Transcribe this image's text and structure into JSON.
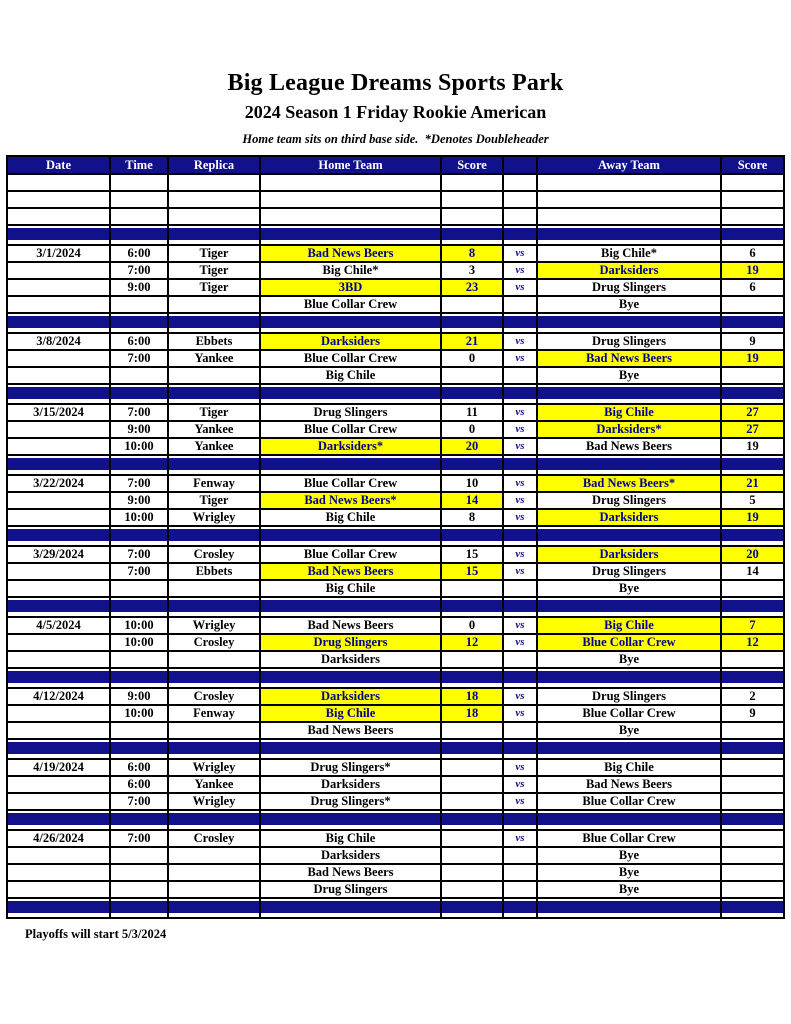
{
  "page": {
    "title": "Big League Dreams Sports Park",
    "subtitle": "2024 Season 1 Friday Rookie American",
    "note": "Home team sits on third base side.  *Denotes Doubleheader",
    "footer": "Playoffs will start 5/3/2024"
  },
  "colors": {
    "navy": "#11118C",
    "yellow": "#FFFF00",
    "highlight_text": "#00008B",
    "header_text": "#FFFFFF",
    "body_text": "#000000"
  },
  "table": {
    "headers": [
      "Date",
      "Time",
      "Replica",
      "Home Team",
      "Score",
      "",
      "Away Team",
      "Score"
    ],
    "vs_label": "vs",
    "rows": [
      {
        "type": "empty"
      },
      {
        "type": "empty"
      },
      {
        "type": "empty"
      },
      {
        "type": "separator"
      },
      {
        "type": "game",
        "date": "3/1/2024",
        "time": "6:00",
        "replica": "Tiger",
        "home": "Bad News Beers",
        "home_score": "8",
        "home_hl": true,
        "vs": true,
        "away": "Big Chile*",
        "away_score": "6",
        "away_hl": false
      },
      {
        "type": "game",
        "date": "",
        "time": "7:00",
        "replica": "Tiger",
        "home": "Big Chile*",
        "home_score": "3",
        "home_hl": false,
        "vs": true,
        "away": "Darksiders",
        "away_score": "19",
        "away_hl": true
      },
      {
        "type": "game",
        "date": "",
        "time": "9:00",
        "replica": "Tiger",
        "home": "3BD",
        "home_score": "23",
        "home_hl": true,
        "vs": true,
        "away": "Drug Slingers",
        "away_score": "6",
        "away_hl": false
      },
      {
        "type": "game",
        "date": "",
        "time": "",
        "replica": "",
        "home": "Blue Collar Crew",
        "home_score": "",
        "home_hl": false,
        "vs": false,
        "away": "Bye",
        "away_score": "",
        "away_hl": false
      },
      {
        "type": "separator"
      },
      {
        "type": "game",
        "date": "3/8/2024",
        "time": "6:00",
        "replica": "Ebbets",
        "home": "Darksiders",
        "home_score": "21",
        "home_hl": true,
        "vs": true,
        "away": "Drug Slingers",
        "away_score": "9",
        "away_hl": false
      },
      {
        "type": "game",
        "date": "",
        "time": "7:00",
        "replica": "Yankee",
        "home": "Blue Collar Crew",
        "home_score": "0",
        "home_hl": false,
        "vs": true,
        "away": "Bad News Beers",
        "away_score": "19",
        "away_hl": true
      },
      {
        "type": "game",
        "date": "",
        "time": "",
        "replica": "",
        "home": "Big Chile",
        "home_score": "",
        "home_hl": false,
        "vs": false,
        "away": "Bye",
        "away_score": "",
        "away_hl": false
      },
      {
        "type": "separator"
      },
      {
        "type": "game",
        "date": "3/15/2024",
        "time": "7:00",
        "replica": "Tiger",
        "home": "Drug Slingers",
        "home_score": "11",
        "home_hl": false,
        "vs": true,
        "away": "Big Chile",
        "away_score": "27",
        "away_hl": true
      },
      {
        "type": "game",
        "date": "",
        "time": "9:00",
        "replica": "Yankee",
        "home": "Blue Collar Crew",
        "home_score": "0",
        "home_hl": false,
        "vs": true,
        "away": "Darksiders*",
        "away_score": "27",
        "away_hl": true
      },
      {
        "type": "game",
        "date": "",
        "time": "10:00",
        "replica": "Yankee",
        "home": "Darksiders*",
        "home_score": "20",
        "home_hl": true,
        "vs": true,
        "away": "Bad News Beers",
        "away_score": "19",
        "away_hl": false
      },
      {
        "type": "separator"
      },
      {
        "type": "game",
        "date": "3/22/2024",
        "time": "7:00",
        "replica": "Fenway",
        "home": "Blue Collar Crew",
        "home_score": "10",
        "home_hl": false,
        "vs": true,
        "away": "Bad News Beers*",
        "away_score": "21",
        "away_hl": true
      },
      {
        "type": "game",
        "date": "",
        "time": "9:00",
        "replica": "Tiger",
        "home": "Bad News Beers*",
        "home_score": "14",
        "home_hl": true,
        "vs": true,
        "away": "Drug Slingers",
        "away_score": "5",
        "away_hl": false
      },
      {
        "type": "game",
        "date": "",
        "time": "10:00",
        "replica": "Wrigley",
        "home": "Big Chile",
        "home_score": "8",
        "home_hl": false,
        "vs": true,
        "away": "Darksiders",
        "away_score": "19",
        "away_hl": true
      },
      {
        "type": "separator"
      },
      {
        "type": "game",
        "date": "3/29/2024",
        "time": "7:00",
        "replica": "Crosley",
        "home": "Blue Collar Crew",
        "home_score": "15",
        "home_hl": false,
        "vs": true,
        "away": "Darksiders",
        "away_score": "20",
        "away_hl": true
      },
      {
        "type": "game",
        "date": "",
        "time": "7:00",
        "replica": "Ebbets",
        "home": "Bad News Beers",
        "home_score": "15",
        "home_hl": true,
        "vs": true,
        "away": "Drug Slingers",
        "away_score": "14",
        "away_hl": false
      },
      {
        "type": "game",
        "date": "",
        "time": "",
        "replica": "",
        "home": "Big Chile",
        "home_score": "",
        "home_hl": false,
        "vs": false,
        "away": "Bye",
        "away_score": "",
        "away_hl": false
      },
      {
        "type": "separator"
      },
      {
        "type": "game",
        "date": "4/5/2024",
        "time": "10:00",
        "replica": "Wrigley",
        "home": "Bad News Beers",
        "home_score": "0",
        "home_hl": false,
        "vs": true,
        "away": "Big Chile",
        "away_score": "7",
        "away_hl": true
      },
      {
        "type": "game",
        "date": "",
        "time": "10:00",
        "replica": "Crosley",
        "home": "Drug Slingers",
        "home_score": "12",
        "home_hl": true,
        "vs": true,
        "away": "Blue Collar Crew",
        "away_score": "12",
        "away_hl": true
      },
      {
        "type": "game",
        "date": "",
        "time": "",
        "replica": "",
        "home": "Darksiders",
        "home_score": "",
        "home_hl": false,
        "vs": false,
        "away": "Bye",
        "away_score": "",
        "away_hl": false
      },
      {
        "type": "separator"
      },
      {
        "type": "game",
        "date": "4/12/2024",
        "time": "9:00",
        "replica": "Crosley",
        "home": "Darksiders",
        "home_score": "18",
        "home_hl": true,
        "vs": true,
        "away": "Drug Slingers",
        "away_score": "2",
        "away_hl": false
      },
      {
        "type": "game",
        "date": "",
        "time": "10:00",
        "replica": "Fenway",
        "home": "Big Chile",
        "home_score": "18",
        "home_hl": true,
        "vs": true,
        "away": "Blue Collar Crew",
        "away_score": "9",
        "away_hl": false
      },
      {
        "type": "game",
        "date": "",
        "time": "",
        "replica": "",
        "home": "Bad News Beers",
        "home_score": "",
        "home_hl": false,
        "vs": false,
        "away": "Bye",
        "away_score": "",
        "away_hl": false
      },
      {
        "type": "separator"
      },
      {
        "type": "game",
        "date": "4/19/2024",
        "time": "6:00",
        "replica": "Wrigley",
        "home": "Drug Slingers*",
        "home_score": "",
        "home_hl": false,
        "vs": true,
        "away": "Big Chile",
        "away_score": "",
        "away_hl": false
      },
      {
        "type": "game",
        "date": "",
        "time": "6:00",
        "replica": "Yankee",
        "home": "Darksiders",
        "home_score": "",
        "home_hl": false,
        "vs": true,
        "away": "Bad News Beers",
        "away_score": "",
        "away_hl": false
      },
      {
        "type": "game",
        "date": "",
        "time": "7:00",
        "replica": "Wrigley",
        "home": "Drug Slingers*",
        "home_score": "",
        "home_hl": false,
        "vs": true,
        "away": "Blue Collar Crew",
        "away_score": "",
        "away_hl": false
      },
      {
        "type": "separator"
      },
      {
        "type": "game",
        "date": "4/26/2024",
        "time": "7:00",
        "replica": "Crosley",
        "home": "Big Chile",
        "home_score": "",
        "home_hl": false,
        "vs": true,
        "away": "Blue Collar Crew",
        "away_score": "",
        "away_hl": false
      },
      {
        "type": "game",
        "date": "",
        "time": "",
        "replica": "",
        "home": "Darksiders",
        "home_score": "",
        "home_hl": false,
        "vs": false,
        "away": "Bye",
        "away_score": "",
        "away_hl": false
      },
      {
        "type": "game",
        "date": "",
        "time": "",
        "replica": "",
        "home": "Bad News Beers",
        "home_score": "",
        "home_hl": false,
        "vs": false,
        "away": "Bye",
        "away_score": "",
        "away_hl": false
      },
      {
        "type": "game",
        "date": "",
        "time": "",
        "replica": "",
        "home": "Drug Slingers",
        "home_score": "",
        "home_hl": false,
        "vs": false,
        "away": "Bye",
        "away_score": "",
        "away_hl": false
      },
      {
        "type": "separator"
      }
    ]
  }
}
